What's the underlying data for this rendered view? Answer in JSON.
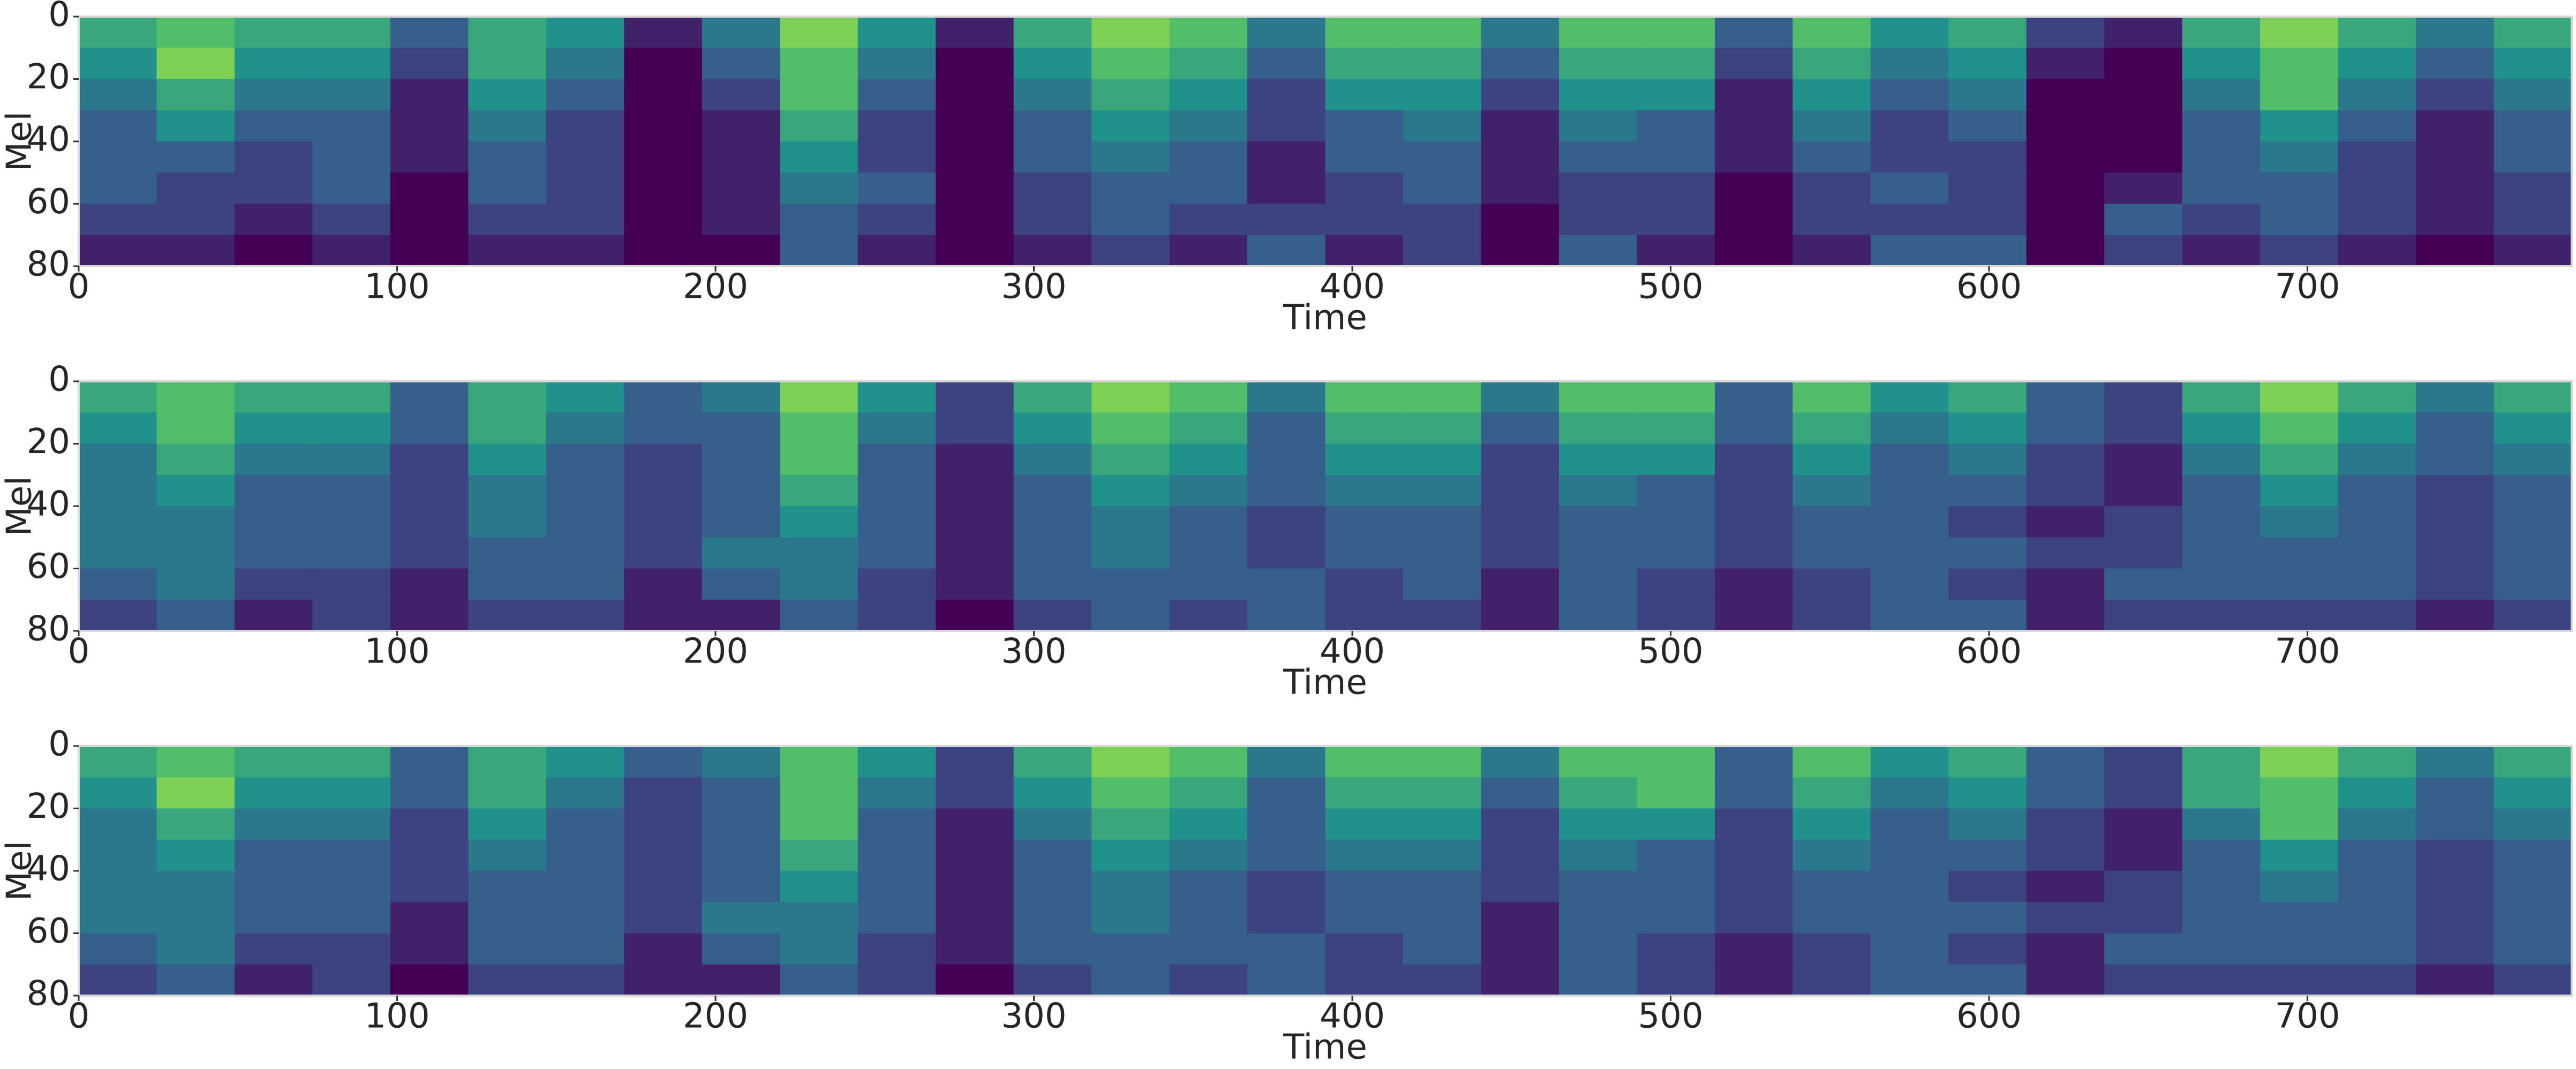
{
  "chart_data": [
    {
      "type": "heatmap",
      "xlabel": "Time",
      "ylabel": "Mel",
      "xlim": [
        0,
        783
      ],
      "ylim": [
        0,
        80
      ],
      "y_inverted": true,
      "xticks": [
        0,
        100,
        200,
        300,
        400,
        500,
        600,
        700
      ],
      "yticks": [
        0,
        20,
        40,
        60,
        80
      ],
      "clim": [
        0,
        1
      ],
      "colors": [
        "#440154",
        "#3b528b",
        "#21918c",
        "#5ec962",
        "#fde725"
      ],
      "values": [
        [
          0.6,
          0.7,
          0.6,
          0.6,
          0.3,
          0.6,
          0.5,
          0.1,
          0.4,
          0.8,
          0.5,
          0.1,
          0.6,
          0.8,
          0.7,
          0.4,
          0.7,
          0.7,
          0.4,
          0.7,
          0.7,
          0.3,
          0.7,
          0.5,
          0.6,
          0.2,
          0.1,
          0.6,
          0.8,
          0.6,
          0.4,
          0.6
        ],
        [
          0.5,
          0.8,
          0.5,
          0.5,
          0.2,
          0.6,
          0.4,
          0.0,
          0.3,
          0.7,
          0.4,
          0.0,
          0.5,
          0.7,
          0.6,
          0.3,
          0.6,
          0.6,
          0.3,
          0.6,
          0.6,
          0.2,
          0.6,
          0.4,
          0.5,
          0.1,
          0.0,
          0.5,
          0.7,
          0.5,
          0.3,
          0.5
        ],
        [
          0.4,
          0.6,
          0.4,
          0.4,
          0.1,
          0.5,
          0.3,
          0.0,
          0.2,
          0.7,
          0.3,
          0.0,
          0.4,
          0.6,
          0.5,
          0.2,
          0.5,
          0.5,
          0.2,
          0.5,
          0.5,
          0.1,
          0.5,
          0.3,
          0.4,
          0.0,
          0.0,
          0.4,
          0.7,
          0.4,
          0.2,
          0.4
        ],
        [
          0.3,
          0.5,
          0.3,
          0.3,
          0.1,
          0.4,
          0.2,
          0.0,
          0.1,
          0.6,
          0.2,
          0.0,
          0.3,
          0.5,
          0.4,
          0.2,
          0.3,
          0.4,
          0.1,
          0.4,
          0.3,
          0.1,
          0.4,
          0.2,
          0.3,
          0.0,
          0.0,
          0.3,
          0.5,
          0.3,
          0.1,
          0.3
        ],
        [
          0.3,
          0.3,
          0.2,
          0.3,
          0.1,
          0.3,
          0.2,
          0.0,
          0.1,
          0.5,
          0.2,
          0.0,
          0.3,
          0.4,
          0.3,
          0.1,
          0.3,
          0.3,
          0.1,
          0.3,
          0.3,
          0.1,
          0.3,
          0.2,
          0.2,
          0.0,
          0.0,
          0.3,
          0.4,
          0.2,
          0.1,
          0.3
        ],
        [
          0.3,
          0.2,
          0.2,
          0.3,
          0.0,
          0.3,
          0.2,
          0.0,
          0.1,
          0.4,
          0.3,
          0.0,
          0.2,
          0.3,
          0.3,
          0.1,
          0.2,
          0.3,
          0.1,
          0.2,
          0.2,
          0.0,
          0.2,
          0.3,
          0.2,
          0.0,
          0.1,
          0.3,
          0.3,
          0.2,
          0.1,
          0.2
        ],
        [
          0.2,
          0.2,
          0.1,
          0.2,
          0.0,
          0.2,
          0.2,
          0.0,
          0.1,
          0.3,
          0.2,
          0.0,
          0.2,
          0.3,
          0.2,
          0.2,
          0.2,
          0.2,
          0.0,
          0.2,
          0.2,
          0.0,
          0.2,
          0.2,
          0.2,
          0.0,
          0.3,
          0.2,
          0.3,
          0.2,
          0.1,
          0.2
        ],
        [
          0.1,
          0.1,
          0.0,
          0.1,
          0.0,
          0.1,
          0.1,
          0.0,
          0.0,
          0.3,
          0.1,
          0.0,
          0.1,
          0.2,
          0.1,
          0.3,
          0.1,
          0.2,
          0.0,
          0.3,
          0.1,
          0.0,
          0.1,
          0.3,
          0.3,
          0.0,
          0.2,
          0.1,
          0.2,
          0.1,
          0.0,
          0.1
        ]
      ]
    },
    {
      "type": "heatmap",
      "xlabel": "Time",
      "ylabel": "Mel",
      "xlim": [
        0,
        783
      ],
      "ylim": [
        0,
        80
      ],
      "y_inverted": true,
      "xticks": [
        0,
        100,
        200,
        300,
        400,
        500,
        600,
        700
      ],
      "yticks": [
        0,
        20,
        40,
        60,
        80
      ],
      "clim": [
        0,
        1
      ],
      "colors": [
        "#440154",
        "#3b528b",
        "#21918c",
        "#5ec962",
        "#fde725"
      ],
      "values": [
        [
          0.6,
          0.7,
          0.6,
          0.6,
          0.3,
          0.6,
          0.5,
          0.3,
          0.4,
          0.8,
          0.5,
          0.2,
          0.6,
          0.8,
          0.7,
          0.4,
          0.7,
          0.7,
          0.4,
          0.7,
          0.7,
          0.3,
          0.7,
          0.5,
          0.6,
          0.3,
          0.2,
          0.6,
          0.8,
          0.6,
          0.4,
          0.6
        ],
        [
          0.5,
          0.7,
          0.5,
          0.5,
          0.3,
          0.6,
          0.4,
          0.3,
          0.3,
          0.7,
          0.4,
          0.2,
          0.5,
          0.7,
          0.6,
          0.3,
          0.6,
          0.6,
          0.3,
          0.6,
          0.6,
          0.3,
          0.6,
          0.4,
          0.5,
          0.3,
          0.2,
          0.5,
          0.7,
          0.5,
          0.3,
          0.5
        ],
        [
          0.4,
          0.6,
          0.4,
          0.4,
          0.2,
          0.5,
          0.3,
          0.2,
          0.3,
          0.7,
          0.3,
          0.1,
          0.4,
          0.6,
          0.5,
          0.3,
          0.5,
          0.5,
          0.2,
          0.5,
          0.5,
          0.2,
          0.5,
          0.3,
          0.4,
          0.2,
          0.1,
          0.4,
          0.6,
          0.4,
          0.3,
          0.4
        ],
        [
          0.4,
          0.5,
          0.3,
          0.3,
          0.2,
          0.4,
          0.3,
          0.2,
          0.3,
          0.6,
          0.3,
          0.1,
          0.3,
          0.5,
          0.4,
          0.3,
          0.4,
          0.4,
          0.2,
          0.4,
          0.3,
          0.2,
          0.4,
          0.3,
          0.3,
          0.2,
          0.1,
          0.3,
          0.5,
          0.3,
          0.2,
          0.3
        ],
        [
          0.4,
          0.4,
          0.3,
          0.3,
          0.2,
          0.4,
          0.3,
          0.2,
          0.3,
          0.5,
          0.3,
          0.1,
          0.3,
          0.4,
          0.3,
          0.2,
          0.3,
          0.3,
          0.2,
          0.3,
          0.3,
          0.2,
          0.3,
          0.3,
          0.2,
          0.1,
          0.2,
          0.3,
          0.4,
          0.3,
          0.2,
          0.3
        ],
        [
          0.4,
          0.4,
          0.3,
          0.3,
          0.2,
          0.3,
          0.3,
          0.2,
          0.4,
          0.4,
          0.3,
          0.1,
          0.3,
          0.4,
          0.3,
          0.2,
          0.3,
          0.3,
          0.2,
          0.3,
          0.3,
          0.2,
          0.3,
          0.3,
          0.3,
          0.2,
          0.2,
          0.3,
          0.3,
          0.3,
          0.2,
          0.3
        ],
        [
          0.3,
          0.4,
          0.2,
          0.2,
          0.1,
          0.3,
          0.3,
          0.1,
          0.3,
          0.4,
          0.2,
          0.1,
          0.3,
          0.3,
          0.3,
          0.3,
          0.2,
          0.3,
          0.1,
          0.3,
          0.2,
          0.1,
          0.2,
          0.3,
          0.2,
          0.1,
          0.3,
          0.3,
          0.3,
          0.3,
          0.2,
          0.3
        ],
        [
          0.2,
          0.3,
          0.1,
          0.2,
          0.1,
          0.2,
          0.2,
          0.1,
          0.1,
          0.3,
          0.2,
          0.0,
          0.2,
          0.3,
          0.2,
          0.3,
          0.2,
          0.2,
          0.1,
          0.3,
          0.2,
          0.1,
          0.2,
          0.3,
          0.3,
          0.1,
          0.2,
          0.2,
          0.2,
          0.2,
          0.1,
          0.2
        ]
      ]
    },
    {
      "type": "heatmap",
      "xlabel": "Time",
      "ylabel": "Mel",
      "xlim": [
        0,
        783
      ],
      "ylim": [
        0,
        80
      ],
      "y_inverted": true,
      "xticks": [
        0,
        100,
        200,
        300,
        400,
        500,
        600,
        700
      ],
      "yticks": [
        0,
        20,
        40,
        60,
        80
      ],
      "clim": [
        0,
        1
      ],
      "colors": [
        "#440154",
        "#3b528b",
        "#21918c",
        "#5ec962",
        "#fde725"
      ],
      "values": [
        [
          0.6,
          0.7,
          0.6,
          0.6,
          0.3,
          0.6,
          0.5,
          0.3,
          0.4,
          0.7,
          0.5,
          0.2,
          0.6,
          0.8,
          0.7,
          0.4,
          0.7,
          0.7,
          0.4,
          0.7,
          0.7,
          0.3,
          0.7,
          0.5,
          0.6,
          0.3,
          0.2,
          0.6,
          0.8,
          0.6,
          0.4,
          0.6
        ],
        [
          0.5,
          0.8,
          0.5,
          0.5,
          0.3,
          0.6,
          0.4,
          0.2,
          0.3,
          0.7,
          0.4,
          0.2,
          0.5,
          0.7,
          0.6,
          0.3,
          0.6,
          0.6,
          0.3,
          0.6,
          0.7,
          0.3,
          0.6,
          0.4,
          0.5,
          0.3,
          0.2,
          0.6,
          0.7,
          0.5,
          0.3,
          0.5
        ],
        [
          0.4,
          0.6,
          0.4,
          0.4,
          0.2,
          0.5,
          0.3,
          0.2,
          0.3,
          0.7,
          0.3,
          0.1,
          0.4,
          0.6,
          0.5,
          0.3,
          0.5,
          0.5,
          0.2,
          0.5,
          0.5,
          0.2,
          0.5,
          0.3,
          0.4,
          0.2,
          0.1,
          0.4,
          0.7,
          0.4,
          0.3,
          0.4
        ],
        [
          0.4,
          0.5,
          0.3,
          0.3,
          0.2,
          0.4,
          0.3,
          0.2,
          0.3,
          0.6,
          0.3,
          0.1,
          0.3,
          0.5,
          0.4,
          0.3,
          0.4,
          0.4,
          0.2,
          0.4,
          0.3,
          0.2,
          0.4,
          0.3,
          0.3,
          0.2,
          0.1,
          0.3,
          0.5,
          0.3,
          0.2,
          0.3
        ],
        [
          0.4,
          0.4,
          0.3,
          0.3,
          0.2,
          0.3,
          0.3,
          0.2,
          0.3,
          0.5,
          0.3,
          0.1,
          0.3,
          0.4,
          0.3,
          0.2,
          0.3,
          0.3,
          0.2,
          0.3,
          0.3,
          0.2,
          0.3,
          0.3,
          0.2,
          0.1,
          0.2,
          0.3,
          0.4,
          0.3,
          0.2,
          0.3
        ],
        [
          0.4,
          0.4,
          0.3,
          0.3,
          0.1,
          0.3,
          0.3,
          0.2,
          0.4,
          0.4,
          0.3,
          0.1,
          0.3,
          0.4,
          0.3,
          0.2,
          0.3,
          0.3,
          0.1,
          0.3,
          0.3,
          0.2,
          0.3,
          0.3,
          0.3,
          0.2,
          0.2,
          0.3,
          0.3,
          0.3,
          0.2,
          0.3
        ],
        [
          0.3,
          0.4,
          0.2,
          0.2,
          0.1,
          0.3,
          0.3,
          0.1,
          0.3,
          0.4,
          0.2,
          0.1,
          0.3,
          0.3,
          0.3,
          0.3,
          0.2,
          0.3,
          0.1,
          0.3,
          0.2,
          0.1,
          0.2,
          0.3,
          0.2,
          0.1,
          0.3,
          0.3,
          0.3,
          0.3,
          0.2,
          0.3
        ],
        [
          0.2,
          0.3,
          0.1,
          0.2,
          0.0,
          0.2,
          0.2,
          0.1,
          0.1,
          0.3,
          0.2,
          0.0,
          0.2,
          0.3,
          0.2,
          0.3,
          0.2,
          0.2,
          0.1,
          0.3,
          0.2,
          0.1,
          0.2,
          0.3,
          0.3,
          0.1,
          0.2,
          0.2,
          0.2,
          0.2,
          0.1,
          0.2
        ]
      ]
    }
  ]
}
